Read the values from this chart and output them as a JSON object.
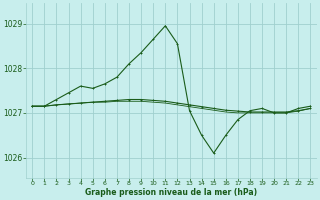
{
  "title": "Graphe pression niveau de la mer (hPa)",
  "bg_color": "#c8eeed",
  "grid_color": "#a0d0ce",
  "line_color": "#1a5c1a",
  "xlim": [
    -0.5,
    23.5
  ],
  "ylim": [
    1025.55,
    1029.45
  ],
  "yticks": [
    1026,
    1027,
    1028,
    1029
  ],
  "xticks": [
    0,
    1,
    2,
    3,
    4,
    5,
    6,
    7,
    8,
    9,
    10,
    11,
    12,
    13,
    14,
    15,
    16,
    17,
    18,
    19,
    20,
    21,
    22,
    23
  ],
  "series1": [
    1027.15,
    1027.15,
    1027.3,
    1027.45,
    1027.6,
    1027.55,
    1027.65,
    1027.8,
    1028.1,
    1028.35,
    1028.65,
    1028.95,
    1028.55,
    1027.05,
    1026.5,
    1026.1,
    1026.5,
    1026.85,
    1027.05,
    1027.1,
    1027.0,
    1027.0,
    1027.1,
    1027.15
  ],
  "series2": [
    1027.15,
    1027.15,
    1027.18,
    1027.2,
    1027.22,
    1027.24,
    1027.26,
    1027.28,
    1027.3,
    1027.3,
    1027.28,
    1027.26,
    1027.22,
    1027.18,
    1027.14,
    1027.1,
    1027.06,
    1027.04,
    1027.02,
    1027.02,
    1027.02,
    1027.02,
    1027.05,
    1027.1
  ],
  "series3": [
    1027.15,
    1027.15,
    1027.18,
    1027.2,
    1027.22,
    1027.24,
    1027.24,
    1027.26,
    1027.26,
    1027.26,
    1027.24,
    1027.22,
    1027.18,
    1027.14,
    1027.1,
    1027.06,
    1027.02,
    1027.0,
    1027.0,
    1027.0,
    1027.0,
    1027.0,
    1027.04,
    1027.1
  ]
}
